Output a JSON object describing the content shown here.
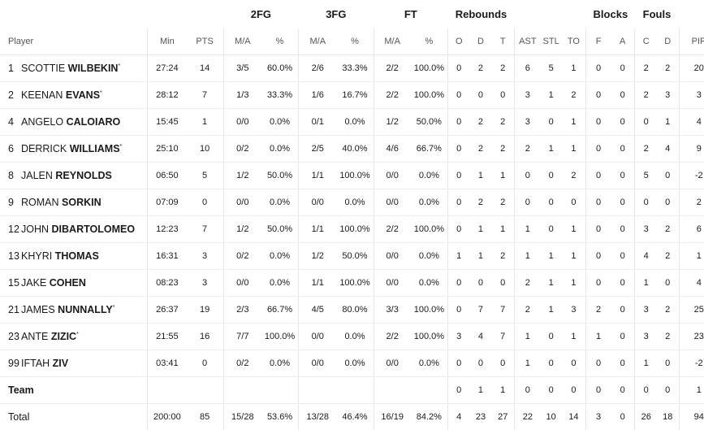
{
  "groups": {
    "fg2": "2FG",
    "fg3": "3FG",
    "ft": "FT",
    "reb": "Rebounds",
    "blk": "Blocks",
    "fouls": "Fouls"
  },
  "cols": {
    "player": "Player",
    "min": "Min",
    "pts": "PTS",
    "ma": "M/A",
    "pct": "%",
    "o": "O",
    "d": "D",
    "t": "T",
    "ast": "AST",
    "stl": "STL",
    "to": "TO",
    "f": "F",
    "a": "A",
    "c": "C",
    "fd": "D",
    "pir": "PIR"
  },
  "players": [
    {
      "num": "1",
      "first": "SCOTTIE",
      "last": "WILBEKIN",
      "star": "*",
      "min": "27:24",
      "pts": "14",
      "fg2": "3/5",
      "fg2p": "60.0%",
      "fg3": "2/6",
      "fg3p": "33.3%",
      "ft": "2/2",
      "ftp": "100.0%",
      "o": "0",
      "d": "2",
      "t": "2",
      "ast": "6",
      "stl": "5",
      "to": "1",
      "bf": "0",
      "ba": "0",
      "fc": "2",
      "fd": "2",
      "pir": "20"
    },
    {
      "num": "2",
      "first": "KEENAN",
      "last": "EVANS",
      "star": "*",
      "min": "28:12",
      "pts": "7",
      "fg2": "1/3",
      "fg2p": "33.3%",
      "fg3": "1/6",
      "fg3p": "16.7%",
      "ft": "2/2",
      "ftp": "100.0%",
      "o": "0",
      "d": "0",
      "t": "0",
      "ast": "3",
      "stl": "1",
      "to": "2",
      "bf": "0",
      "ba": "0",
      "fc": "2",
      "fd": "3",
      "pir": "3"
    },
    {
      "num": "4",
      "first": "ANGELO",
      "last": "CALOIARO",
      "star": "",
      "min": "15:45",
      "pts": "1",
      "fg2": "0/0",
      "fg2p": "0.0%",
      "fg3": "0/1",
      "fg3p": "0.0%",
      "ft": "1/2",
      "ftp": "50.0%",
      "o": "0",
      "d": "2",
      "t": "2",
      "ast": "3",
      "stl": "0",
      "to": "1",
      "bf": "0",
      "ba": "0",
      "fc": "0",
      "fd": "1",
      "pir": "4"
    },
    {
      "num": "6",
      "first": "DERRICK",
      "last": "WILLIAMS",
      "star": "*",
      "min": "25:10",
      "pts": "10",
      "fg2": "0/2",
      "fg2p": "0.0%",
      "fg3": "2/5",
      "fg3p": "40.0%",
      "ft": "4/6",
      "ftp": "66.7%",
      "o": "0",
      "d": "2",
      "t": "2",
      "ast": "2",
      "stl": "1",
      "to": "1",
      "bf": "0",
      "ba": "0",
      "fc": "2",
      "fd": "4",
      "pir": "9"
    },
    {
      "num": "8",
      "first": "JALEN",
      "last": "REYNOLDS",
      "star": "",
      "min": "06:50",
      "pts": "5",
      "fg2": "1/2",
      "fg2p": "50.0%",
      "fg3": "1/1",
      "fg3p": "100.0%",
      "ft": "0/0",
      "ftp": "0.0%",
      "o": "0",
      "d": "1",
      "t": "1",
      "ast": "0",
      "stl": "0",
      "to": "2",
      "bf": "0",
      "ba": "0",
      "fc": "5",
      "fd": "0",
      "pir": "-2"
    },
    {
      "num": "9",
      "first": "ROMAN",
      "last": "SORKIN",
      "star": "",
      "min": "07:09",
      "pts": "0",
      "fg2": "0/0",
      "fg2p": "0.0%",
      "fg3": "0/0",
      "fg3p": "0.0%",
      "ft": "0/0",
      "ftp": "0.0%",
      "o": "0",
      "d": "2",
      "t": "2",
      "ast": "0",
      "stl": "0",
      "to": "0",
      "bf": "0",
      "ba": "0",
      "fc": "0",
      "fd": "0",
      "pir": "2"
    },
    {
      "num": "12",
      "first": "JOHN",
      "last": "DIBARTOLOMEO",
      "star": "",
      "min": "12:23",
      "pts": "7",
      "fg2": "1/2",
      "fg2p": "50.0%",
      "fg3": "1/1",
      "fg3p": "100.0%",
      "ft": "2/2",
      "ftp": "100.0%",
      "o": "0",
      "d": "1",
      "t": "1",
      "ast": "1",
      "stl": "0",
      "to": "1",
      "bf": "0",
      "ba": "0",
      "fc": "3",
      "fd": "2",
      "pir": "6"
    },
    {
      "num": "13",
      "first": "KHYRI",
      "last": "THOMAS",
      "star": "",
      "min": "16:31",
      "pts": "3",
      "fg2": "0/2",
      "fg2p": "0.0%",
      "fg3": "1/2",
      "fg3p": "50.0%",
      "ft": "0/0",
      "ftp": "0.0%",
      "o": "1",
      "d": "1",
      "t": "2",
      "ast": "1",
      "stl": "1",
      "to": "1",
      "bf": "0",
      "ba": "0",
      "fc": "4",
      "fd": "2",
      "pir": "1"
    },
    {
      "num": "15",
      "first": "JAKE",
      "last": "COHEN",
      "star": "",
      "min": "08:23",
      "pts": "3",
      "fg2": "0/0",
      "fg2p": "0.0%",
      "fg3": "1/1",
      "fg3p": "100.0%",
      "ft": "0/0",
      "ftp": "0.0%",
      "o": "0",
      "d": "0",
      "t": "0",
      "ast": "2",
      "stl": "1",
      "to": "1",
      "bf": "0",
      "ba": "0",
      "fc": "1",
      "fd": "0",
      "pir": "4"
    },
    {
      "num": "21",
      "first": "JAMES",
      "last": "NUNNALLY",
      "star": "*",
      "min": "26:37",
      "pts": "19",
      "fg2": "2/3",
      "fg2p": "66.7%",
      "fg3": "4/5",
      "fg3p": "80.0%",
      "ft": "3/3",
      "ftp": "100.0%",
      "o": "0",
      "d": "7",
      "t": "7",
      "ast": "2",
      "stl": "1",
      "to": "3",
      "bf": "2",
      "ba": "0",
      "fc": "3",
      "fd": "2",
      "pir": "25"
    },
    {
      "num": "23",
      "first": "ANTE",
      "last": "ZIZIC",
      "star": "*",
      "min": "21:55",
      "pts": "16",
      "fg2": "7/7",
      "fg2p": "100.0%",
      "fg3": "0/0",
      "fg3p": "0.0%",
      "ft": "2/2",
      "ftp": "100.0%",
      "o": "3",
      "d": "4",
      "t": "7",
      "ast": "1",
      "stl": "0",
      "to": "1",
      "bf": "1",
      "ba": "0",
      "fc": "3",
      "fd": "2",
      "pir": "23"
    },
    {
      "num": "99",
      "first": "IFTAH",
      "last": "ZIV",
      "star": "",
      "min": "03:41",
      "pts": "0",
      "fg2": "0/2",
      "fg2p": "0.0%",
      "fg3": "0/0",
      "fg3p": "0.0%",
      "ft": "0/0",
      "ftp": "0.0%",
      "o": "0",
      "d": "0",
      "t": "0",
      "ast": "1",
      "stl": "0",
      "to": "0",
      "bf": "0",
      "ba": "0",
      "fc": "1",
      "fd": "0",
      "pir": "-2"
    }
  ],
  "team": {
    "label": "Team",
    "o": "0",
    "d": "1",
    "t": "1",
    "ast": "0",
    "stl": "0",
    "to": "0",
    "bf": "0",
    "ba": "0",
    "fc": "0",
    "fd": "0",
    "pir": "1"
  },
  "total": {
    "label": "Total",
    "min": "200:00",
    "pts": "85",
    "fg2": "15/28",
    "fg2p": "53.6%",
    "fg3": "13/28",
    "fg3p": "46.4%",
    "ft": "16/19",
    "ftp": "84.2%",
    "o": "4",
    "d": "23",
    "t": "27",
    "ast": "22",
    "stl": "10",
    "to": "14",
    "bf": "3",
    "ba": "0",
    "fc": "26",
    "fd": "18",
    "pir": "94"
  }
}
